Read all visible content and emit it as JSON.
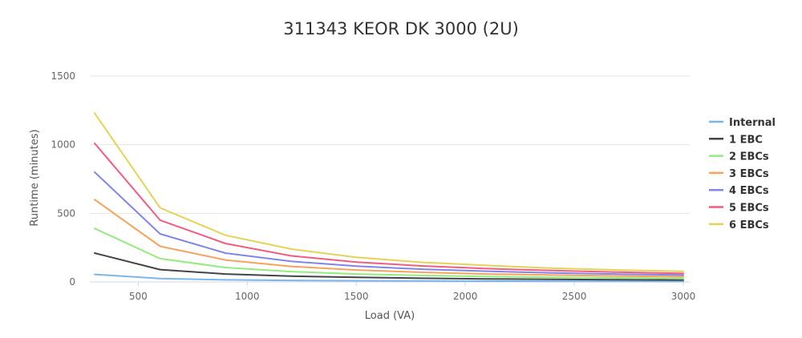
{
  "chart_data": {
    "type": "line",
    "title": "311343 KEOR DK 3000 (2U)",
    "xlabel": "Load (VA)",
    "ylabel": "Runtime (minutes)",
    "xlim": [
      300,
      3000
    ],
    "ylim": [
      0,
      1500
    ],
    "x_ticks": [
      "500",
      "1000",
      "1500",
      "2000",
      "2500",
      "3000"
    ],
    "x_tick_values": [
      500,
      1000,
      1500,
      2000,
      2500,
      3000
    ],
    "y_ticks": [
      "0",
      "500",
      "1000",
      "1500"
    ],
    "y_tick_values": [
      0,
      500,
      1000,
      1500
    ],
    "grid": true,
    "legend_position": "right",
    "x": [
      300,
      600,
      900,
      1200,
      1500,
      1800,
      2100,
      2400,
      2700,
      3000
    ],
    "series": [
      {
        "name": "Internal",
        "color": "#7cb5ec",
        "values": [
          55,
          25,
          15,
          11,
          9,
          7,
          6,
          5,
          4,
          3
        ]
      },
      {
        "name": "1 EBC",
        "color": "#434348",
        "values": [
          210,
          90,
          58,
          42,
          33,
          27,
          22,
          19,
          16,
          14
        ]
      },
      {
        "name": "2 EBCs",
        "color": "#90ed7d",
        "values": [
          390,
          170,
          105,
          75,
          58,
          47,
          39,
          33,
          29,
          25
        ]
      },
      {
        "name": "3 EBCs",
        "color": "#f7a35c",
        "values": [
          600,
          260,
          160,
          113,
          87,
          70,
          58,
          50,
          43,
          38
        ]
      },
      {
        "name": "4 EBCs",
        "color": "#8085e9",
        "values": [
          800,
          350,
          210,
          150,
          115,
          93,
          78,
          66,
          57,
          50
        ]
      },
      {
        "name": "5 EBCs",
        "color": "#f15c80",
        "values": [
          1010,
          450,
          280,
          190,
          145,
          117,
          97,
          83,
          71,
          62
        ]
      },
      {
        "name": "6 EBCs",
        "color": "#e4d354",
        "values": [
          1230,
          540,
          340,
          240,
          180,
          143,
          120,
          100,
          87,
          77
        ]
      }
    ]
  }
}
